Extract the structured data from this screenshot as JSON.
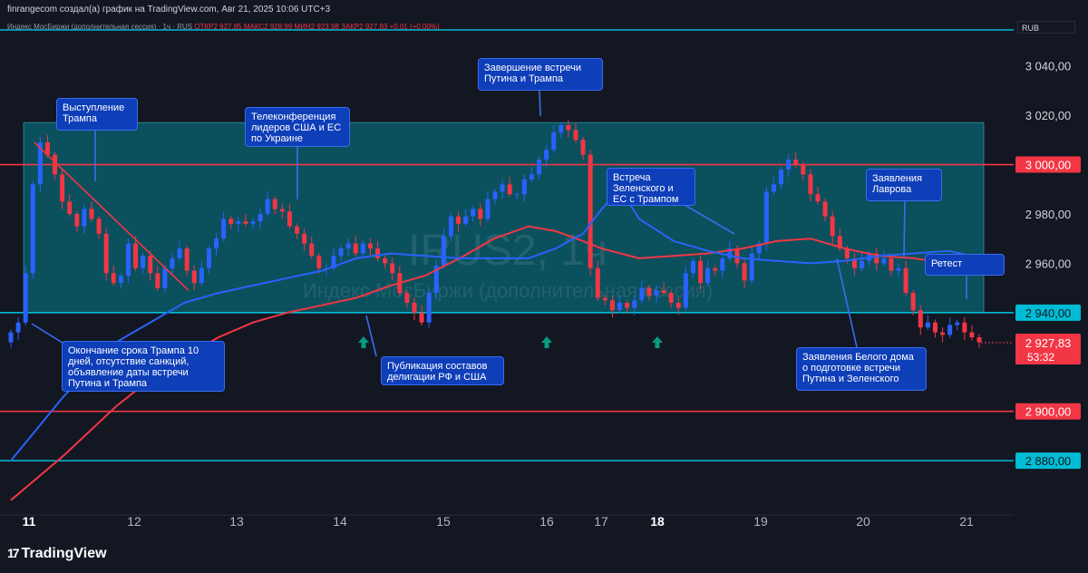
{
  "header": {
    "credit": "finrangecom создал(а) график на TradingView.com, Авг 21, 2025 10:06 UTC+3",
    "legend_label": "Индекс МосБиржи (дополнительная сессия) · 1ч · RUS",
    "ohlc": "ОТКР2 927,85  МАКС2 928,99  МИН2 923,98  ЗАКР2 927,83  +0,01 (+0,00%)",
    "currency": "RUB"
  },
  "watermark": {
    "line1": "IRUS2, 1ч",
    "line2": "Индекс МосБиржи (дополнительная сессия)"
  },
  "price_labels": {
    "y3040": "3 040,00",
    "y3020": "3 020,00",
    "y3000": "3 000,00",
    "y2980": "2 980,00",
    "y2960": "2 960,00",
    "y2940": "2 940,00",
    "y2900": "2 900,00",
    "y2880": "2 880,00",
    "last": "2 927,83",
    "countdown": "53:32"
  },
  "time_labels": [
    "11",
    "12",
    "13",
    "14",
    "15",
    "16",
    "17",
    "18",
    "19",
    "20",
    "21"
  ],
  "annotations": {
    "a1": "Выступление\nТрампа",
    "a2": "Телеконференция\nлидеров США и ЕС\nпо Украине",
    "a3": "Завершение встречи\nПутина и Трампа",
    "a4": "Встреча\nЗеленского и\nЕС с Трампом",
    "a5": "Заявления\nЛаврова",
    "a6": "Ретест",
    "a7": "Окончание срока Трампа 10\nдней, отсутствие санкций,\nобъявление даты встречи\nПутина и Трампа",
    "a8": "Публикация составов\nделигации РФ и США",
    "a9": "Заявления Белого дома\nо подготовке встречи\nПутина и Зеленского"
  },
  "logo": {
    "mark": "17",
    "text": "TradingView"
  },
  "colors": {
    "up": "#2962ff",
    "down": "#f23645",
    "cyan": "#00bcd4",
    "zone": "#00a0b0",
    "ema_fast": "#2962ff",
    "ema_slow": "#f23645",
    "arrow": "#089981"
  },
  "chart_data": {
    "type": "candlestick",
    "symbol": "IRUS2",
    "timeframe": "1ч",
    "ylim": [
      2858,
      3052
    ],
    "y_ticks": [
      3040,
      3020,
      3000,
      2980,
      2960,
      2940,
      2900,
      2880
    ],
    "x_labels": [
      "11",
      "12",
      "13",
      "14",
      "15",
      "16",
      "17",
      "18",
      "19",
      "20",
      "21"
    ],
    "horizontal_levels": [
      {
        "price": 3000,
        "color": "#f23645"
      },
      {
        "price": 2940,
        "color": "#00bcd4"
      },
      {
        "price": 2900,
        "color": "#f23645"
      },
      {
        "price": 2880,
        "color": "#00bcd4"
      },
      {
        "price": 2927.83,
        "color": "#f23645",
        "style": "last"
      }
    ],
    "zone": {
      "from_label": "11",
      "to_label": "21",
      "top": 3017,
      "bottom": 2940
    },
    "closes": [
      2932,
      2936,
      2956,
      2992,
      3009,
      3004,
      2996,
      2985,
      2980,
      2975,
      2982,
      2978,
      2972,
      2956,
      2952,
      2955,
      2968,
      2958,
      2963,
      2956,
      2950,
      2958,
      2962,
      2966,
      2957,
      2952,
      2958,
      2966,
      2970,
      2978,
      2976,
      2977,
      2976,
      2977,
      2980,
      2986,
      2982,
      2981,
      2975,
      2972,
      2968,
      2963,
      2958,
      2958,
      2963,
      2966,
      2968,
      2964,
      2968,
      2966,
      2962,
      2960,
      2956,
      2948,
      2944,
      2940,
      2936,
      2948,
      2959,
      2971,
      2979,
      2976,
      2979,
      2982,
      2978,
      2986,
      2989,
      2992,
      2988,
      2988,
      2994,
      2996,
      3002,
      3006,
      3013,
      3016,
      3014,
      3010,
      3004,
      2958,
      2946,
      2945,
      2941,
      2944,
      2942,
      2945,
      2950,
      2947,
      2949,
      2948,
      2944,
      2942,
      2956,
      2961,
      2952,
      2958,
      2957,
      2962,
      2966,
      2960,
      2953,
      2964,
      2968,
      2989,
      2992,
      2998,
      3002,
      3000,
      2996,
      2988,
      2985,
      2979,
      2971,
      2966,
      2962,
      2958,
      2961,
      2964,
      2960,
      2962,
      2957,
      2958,
      2948,
      2941,
      2934,
      2936,
      2932,
      2931,
      2935,
      2936,
      2932,
      2930,
      2928
    ],
    "ema_fast": [
      2880,
      2906,
      2928,
      2936,
      2944,
      2948,
      2951,
      2954,
      2957,
      2962,
      2964,
      2963,
      2962,
      2962,
      2962,
      2966,
      2972,
      2982,
      2990,
      2978,
      2969,
      2965,
      2962,
      2961,
      2960,
      2961,
      2963,
      2964,
      2965,
      2963
    ],
    "ema_slow": [
      2864,
      2882,
      2902,
      2913,
      2922,
      2930,
      2936,
      2940,
      2943,
      2946,
      2951,
      2955,
      2962,
      2970,
      2975,
      2973,
      2969,
      2966,
      2964,
      2962,
      2963,
      2964,
      2966,
      2969,
      2970,
      2966,
      2963,
      2962,
      2960,
      2956
    ],
    "ema_x_labels": [
      "11",
      "11",
      "12",
      "12",
      "12",
      "13",
      "13",
      "13",
      "14",
      "14",
      "14",
      "15",
      "15",
      "15",
      "16",
      "16",
      "17",
      "17",
      "17",
      "18",
      "18",
      "18",
      "19",
      "19",
      "19",
      "20",
      "20",
      "20",
      "21",
      "21"
    ],
    "signals_up": [
      "14",
      "16",
      "18"
    ]
  }
}
